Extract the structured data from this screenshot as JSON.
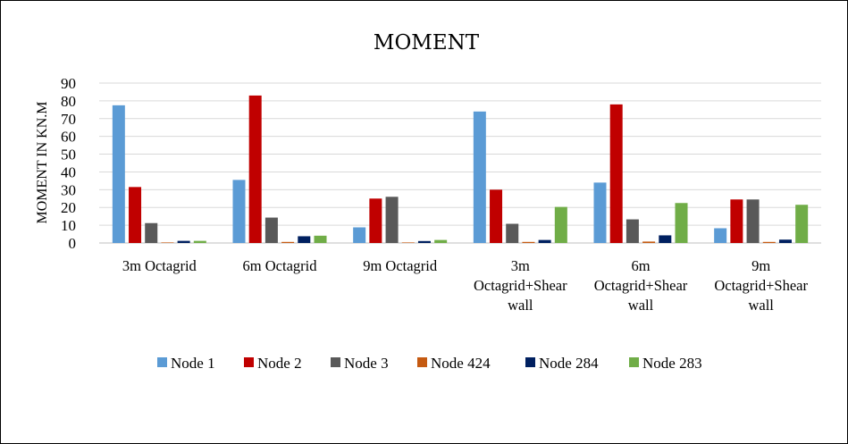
{
  "chart_data": {
    "type": "bar",
    "title": "MOMENT",
    "xlabel": "",
    "ylabel": "MOMENT IN KN.M",
    "ylim": [
      0,
      90
    ],
    "yticks": [
      0,
      10,
      20,
      30,
      40,
      50,
      60,
      70,
      80,
      90
    ],
    "grid": true,
    "legend_position": "bottom",
    "categories": [
      [
        "3m Octagrid"
      ],
      [
        "6m Octagrid"
      ],
      [
        "9m Octagrid"
      ],
      [
        "3m",
        "Octagrid+Shear",
        "wall"
      ],
      [
        "6m",
        "Octagrid+Shear",
        "wall"
      ],
      [
        "9m",
        "Octagrid+Shear",
        "wall"
      ]
    ],
    "series": [
      {
        "name": "Node 1",
        "color": "#5B9BD5",
        "values": [
          77.5,
          35.5,
          8.8,
          74.0,
          34.0,
          8.3
        ]
      },
      {
        "name": "Node 2",
        "color": "#C00000",
        "values": [
          31.5,
          83.0,
          25.0,
          30.0,
          78.0,
          24.5
        ]
      },
      {
        "name": "Node 3",
        "color": "#595959",
        "values": [
          11.2,
          14.3,
          26.0,
          10.8,
          13.3,
          24.5
        ]
      },
      {
        "name": "Node 424",
        "color": "#C55A11",
        "values": [
          0.3,
          0.6,
          0.3,
          0.6,
          0.8,
          0.6
        ]
      },
      {
        "name": "Node 284",
        "color": "#002060",
        "values": [
          1.2,
          3.8,
          1.1,
          1.7,
          4.3,
          1.9
        ]
      },
      {
        "name": "Node 283",
        "color": "#70AD47",
        "values": [
          1.2,
          4.1,
          1.7,
          20.3,
          22.5,
          21.5
        ]
      }
    ]
  }
}
